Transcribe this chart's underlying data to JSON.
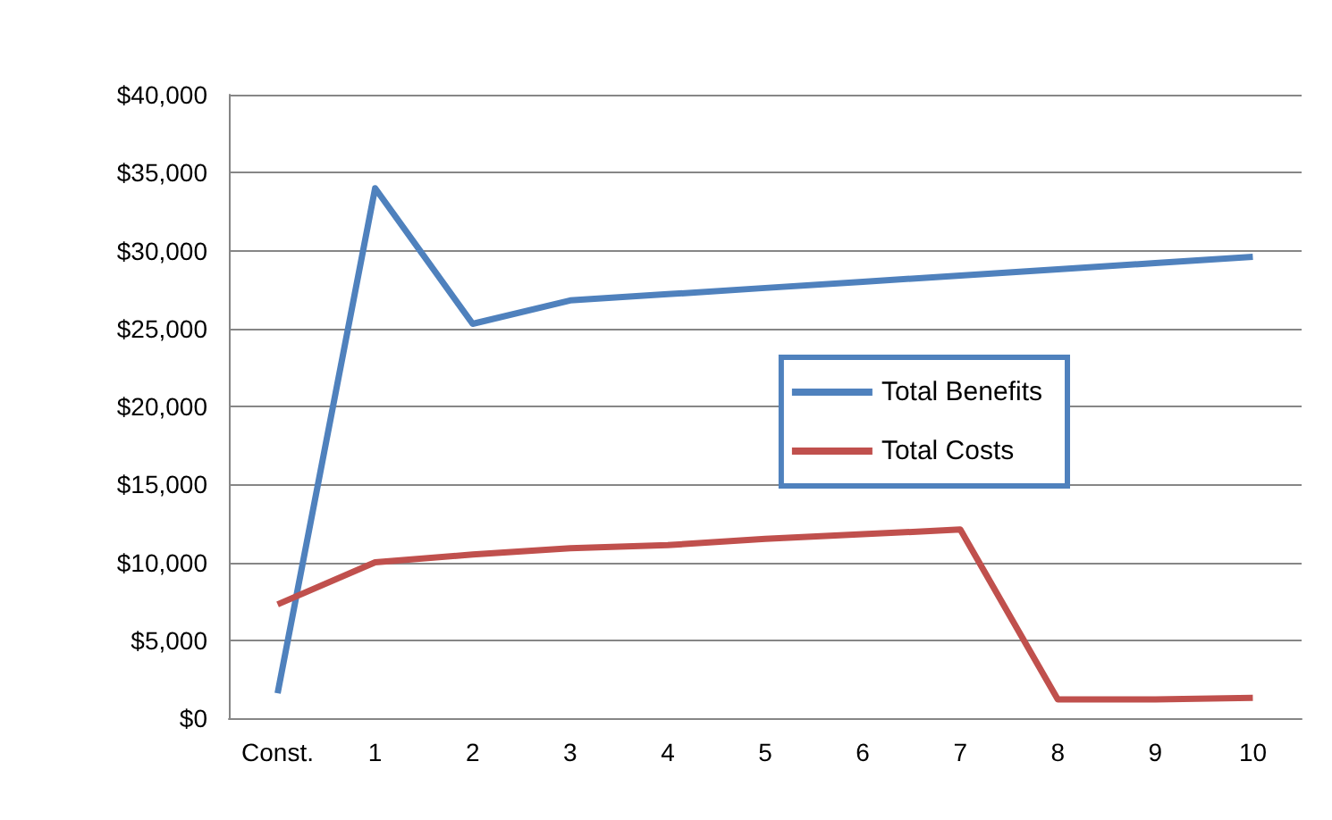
{
  "chart_data": {
    "type": "line",
    "categories": [
      "Const.",
      "1",
      "2",
      "3",
      "4",
      "5",
      "6",
      "7",
      "8",
      "9",
      "10"
    ],
    "series": [
      {
        "name": "Total Benefits",
        "color": "#4f81bd",
        "values": [
          1600,
          34000,
          25300,
          26800,
          27200,
          27600,
          28000,
          28400,
          28800,
          29200,
          29600
        ]
      },
      {
        "name": "Total Costs",
        "color": "#c0504d",
        "values": [
          7300,
          10000,
          10500,
          10900,
          11100,
          11500,
          11800,
          12100,
          1200,
          1200,
          1300
        ]
      }
    ],
    "ylim": [
      0,
      40000
    ],
    "yticks": [
      {
        "value": 0,
        "label": "$0"
      },
      {
        "value": 5000,
        "label": "$5,000"
      },
      {
        "value": 10000,
        "label": "$10,000"
      },
      {
        "value": 15000,
        "label": "$15,000"
      },
      {
        "value": 20000,
        "label": "$20,000"
      },
      {
        "value": 25000,
        "label": "$25,000"
      },
      {
        "value": 30000,
        "label": "$30,000"
      },
      {
        "value": 35000,
        "label": "$35,000"
      },
      {
        "value": 40000,
        "label": "$40,000"
      }
    ],
    "grid": "y",
    "legend": "right",
    "marker": "none",
    "line_style": "solid"
  }
}
